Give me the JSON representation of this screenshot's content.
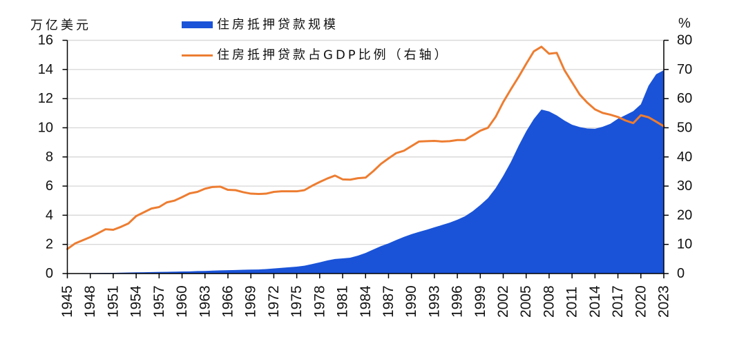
{
  "chart_data": {
    "type": "area",
    "title": "",
    "xlabel": "",
    "ylabel": "万亿美元",
    "y2label": "%",
    "xlim": [
      1945,
      2023
    ],
    "ylim": [
      0,
      16
    ],
    "y2lim": [
      0,
      80
    ],
    "yticks": [
      0,
      2,
      4,
      6,
      8,
      10,
      12,
      14,
      16
    ],
    "y2ticks": [
      0,
      10,
      20,
      30,
      40,
      50,
      60,
      70,
      80
    ],
    "xticks": [
      1945,
      1948,
      1951,
      1954,
      1957,
      1960,
      1963,
      1966,
      1969,
      1972,
      1975,
      1978,
      1981,
      1984,
      1987,
      1990,
      1993,
      1996,
      1999,
      2002,
      2005,
      2008,
      2011,
      2014,
      2017,
      2020,
      2023
    ],
    "grid": "horizontal",
    "legend": "top-center",
    "x": [
      1945,
      1946,
      1947,
      1948,
      1949,
      1950,
      1951,
      1952,
      1953,
      1954,
      1955,
      1956,
      1957,
      1958,
      1959,
      1960,
      1961,
      1962,
      1963,
      1964,
      1965,
      1966,
      1967,
      1968,
      1969,
      1970,
      1971,
      1972,
      1973,
      1974,
      1975,
      1976,
      1977,
      1978,
      1979,
      1980,
      1981,
      1982,
      1983,
      1984,
      1985,
      1986,
      1987,
      1988,
      1989,
      1990,
      1991,
      1992,
      1993,
      1994,
      1995,
      1996,
      1997,
      1998,
      1999,
      2000,
      2001,
      2002,
      2003,
      2004,
      2005,
      2006,
      2007,
      2008,
      2009,
      2010,
      2011,
      2012,
      2013,
      2014,
      2015,
      2016,
      2017,
      2018,
      2019,
      2020,
      2021,
      2022,
      2023
    ],
    "series": [
      {
        "name": "住房抵押贷款规模",
        "type": "area",
        "axis": "left",
        "unit": "万亿美元",
        "values": [
          0.02,
          0.02,
          0.03,
          0.03,
          0.04,
          0.05,
          0.05,
          0.06,
          0.07,
          0.08,
          0.09,
          0.1,
          0.11,
          0.12,
          0.13,
          0.14,
          0.15,
          0.17,
          0.18,
          0.2,
          0.22,
          0.23,
          0.24,
          0.26,
          0.27,
          0.28,
          0.31,
          0.35,
          0.39,
          0.43,
          0.47,
          0.54,
          0.65,
          0.77,
          0.9,
          1.0,
          1.04,
          1.09,
          1.23,
          1.41,
          1.65,
          1.88,
          2.07,
          2.3,
          2.51,
          2.7,
          2.86,
          3.01,
          3.17,
          3.33,
          3.49,
          3.69,
          3.93,
          4.27,
          4.7,
          5.17,
          5.85,
          6.7,
          7.65,
          8.75,
          9.75,
          10.6,
          11.25,
          11.12,
          10.85,
          10.5,
          10.21,
          10.05,
          9.95,
          9.93,
          10.07,
          10.27,
          10.62,
          10.87,
          11.14,
          11.61,
          12.88,
          13.67,
          13.95
        ]
      },
      {
        "name": "住房抵押贷款占GDP比例（右轴）",
        "type": "line",
        "axis": "right",
        "unit": "%",
        "values": [
          8.4,
          10.3,
          11.4,
          12.5,
          13.8,
          15.2,
          15.0,
          16.0,
          17.2,
          19.7,
          21.0,
          22.3,
          22.8,
          24.4,
          25.0,
          26.2,
          27.5,
          28.0,
          29.1,
          29.7,
          29.8,
          28.7,
          28.6,
          27.9,
          27.4,
          27.3,
          27.4,
          28.0,
          28.2,
          28.2,
          28.2,
          28.6,
          30.1,
          31.4,
          32.6,
          33.6,
          32.3,
          32.2,
          32.7,
          32.9,
          35.1,
          37.6,
          39.5,
          41.3,
          42.1,
          43.7,
          45.3,
          45.4,
          45.5,
          45.3,
          45.4,
          45.8,
          45.8,
          47.4,
          49.0,
          50.0,
          53.7,
          58.8,
          63.2,
          67.4,
          71.9,
          76.2,
          77.8,
          75.4,
          75.7,
          69.8,
          65.6,
          61.4,
          58.6,
          56.3,
          55.1,
          54.5,
          53.7,
          52.5,
          51.6,
          54.3,
          53.6,
          52.1,
          50.5
        ]
      }
    ]
  },
  "colors": {
    "area": "#1a53d8",
    "line": "#ed7d31",
    "grid": "#d9d9d9",
    "axis": "#000000"
  }
}
